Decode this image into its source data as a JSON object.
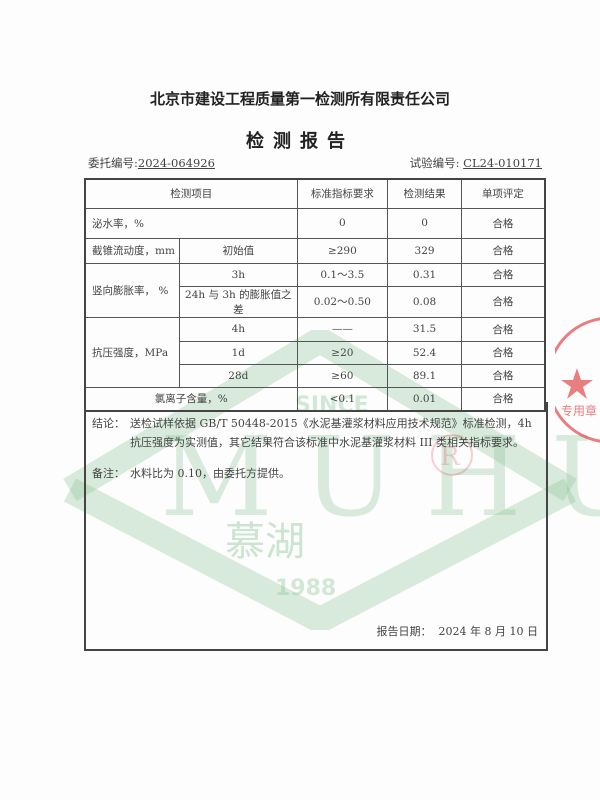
{
  "header": {
    "company": "北京市建设工程质量第一检测所有限责任公司",
    "title": "检测报告",
    "commission_label": "委托编号:",
    "commission_no": "2024-064926",
    "test_label": "试验编号:",
    "test_no": "CL24-010171"
  },
  "table": {
    "columns": [
      "检测项目",
      "标准指标要求",
      "检测结果",
      "单项评定"
    ],
    "rows": [
      {
        "item": "泌水率，%",
        "sub": "",
        "standard": "0",
        "result": "0",
        "verdict": "合格"
      },
      {
        "item": "截锥流动度，mm",
        "sub": "初始值",
        "standard": "≥290",
        "result": "329",
        "verdict": "合格"
      },
      {
        "item": "竖向膨胀率，  %",
        "sub": "3h",
        "standard": "0.1～3.5",
        "result": "0.31",
        "verdict": "合格"
      },
      {
        "item": "",
        "sub": "24h 与 3h 的膨胀值之差",
        "standard": "0.02～0.50",
        "result": "0.08",
        "verdict": "合格"
      },
      {
        "item": "抗压强度，MPa",
        "sub": "4h",
        "standard": "——",
        "result": "31.5",
        "verdict": "合格"
      },
      {
        "item": "",
        "sub": "1d",
        "standard": "≥20",
        "result": "52.4",
        "verdict": "合格"
      },
      {
        "item": "",
        "sub": "28d",
        "standard": "≥60",
        "result": "89.1",
        "verdict": "合格"
      },
      {
        "item": "氯离子含量，%",
        "sub": "",
        "standard": "<0.1",
        "result": "0.01",
        "verdict": "合格"
      }
    ]
  },
  "conclusion": {
    "label": "结论：",
    "line1": "送检试样依据 GB/T 50448-2015《水泥基灌浆材料应用技术规范》标准检测，4h",
    "line2": "抗压强度为实测值，其它结果符合该标准中水泥基灌浆材料 III 类相关指标要求。"
  },
  "remark": {
    "label": "备注：",
    "text": "水料比为 0.10，由委托方提供。"
  },
  "report_date": "报告日期：  2024 年 8 月 10 日",
  "watermark": {
    "since": "SINCE",
    "letters": "MUHU",
    "cn": "慕湖",
    "year": "1988",
    "mark": "R"
  },
  "stamp": {
    "text": "专用章",
    "colors": {
      "stamp": "#e0474c",
      "watermark": "#8fc79a"
    }
  }
}
